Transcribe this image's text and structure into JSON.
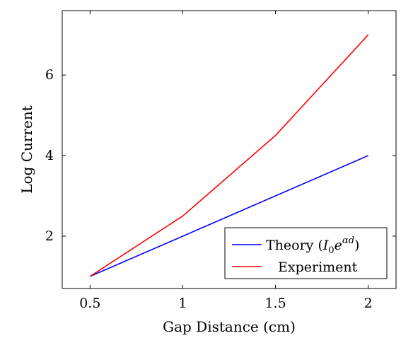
{
  "chart_data": {
    "type": "line",
    "xlabel": "Gap Distance (cm)",
    "ylabel": "Log Current",
    "xlim": [
      0.35,
      2.15
    ],
    "ylim": [
      0.7,
      7.6
    ],
    "x_ticks": [
      0.5,
      1,
      1.5,
      2
    ],
    "x_tick_labels": [
      "0.5",
      "1",
      "1.5",
      "2"
    ],
    "y_ticks": [
      2,
      4,
      6
    ],
    "y_tick_labels": [
      "2",
      "4",
      "6"
    ],
    "grid": false,
    "legend_position": "bottom-right",
    "series": [
      {
        "name": "Theory (I0e^αd)",
        "legend_main": "Theory (",
        "legend_I": "I",
        "legend_sub": "0",
        "legend_e": "e",
        "legend_sup": "αd",
        "legend_close": ")",
        "color": "#0000ff",
        "x": [
          0.5,
          1,
          1.5,
          2
        ],
        "y": [
          1,
          2,
          3,
          4
        ]
      },
      {
        "name": "Experiment",
        "color": "#ff0000",
        "x": [
          0.5,
          1,
          1.5,
          2
        ],
        "y": [
          1,
          2.5,
          4.5,
          7
        ]
      }
    ]
  }
}
